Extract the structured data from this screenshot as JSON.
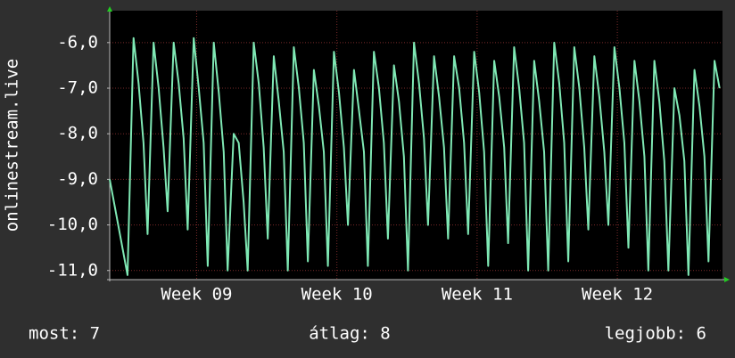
{
  "chart_data": {
    "type": "line",
    "ylabel": "onlinestream.live",
    "xlim": [
      8.38,
      12.75
    ],
    "ylim": [
      -11.2,
      -5.3
    ],
    "xticks": [
      {
        "value": 9,
        "label": "Week 09"
      },
      {
        "value": 10,
        "label": "Week 10"
      },
      {
        "value": 11,
        "label": "Week 11"
      },
      {
        "value": 12,
        "label": "Week 12"
      }
    ],
    "yticks": [
      {
        "value": -6,
        "label": "-6,0"
      },
      {
        "value": -7,
        "label": "-7,0"
      },
      {
        "value": -8,
        "label": "-8,0"
      },
      {
        "value": -9,
        "label": "-9,0"
      },
      {
        "value": -10,
        "label": "-10,0"
      },
      {
        "value": -11,
        "label": "-11,0"
      }
    ],
    "grid": true,
    "series": [
      {
        "color": "#7fe8b4",
        "x": [
          8.38,
          8.507,
          8.55,
          8.586,
          8.621,
          8.65,
          8.693,
          8.729,
          8.764,
          8.793,
          8.836,
          8.872,
          8.907,
          8.936,
          8.979,
          9.015,
          9.05,
          9.079,
          9.122,
          9.158,
          9.193,
          9.221,
          9.264,
          9.3,
          9.335,
          9.364,
          9.407,
          9.443,
          9.478,
          9.507,
          9.55,
          9.586,
          9.621,
          9.65,
          9.693,
          9.729,
          9.764,
          9.793,
          9.836,
          9.872,
          9.907,
          9.936,
          9.979,
          10.015,
          10.05,
          10.079,
          10.122,
          10.158,
          10.193,
          10.221,
          10.264,
          10.3,
          10.335,
          10.364,
          10.407,
          10.443,
          10.478,
          10.507,
          10.55,
          10.586,
          10.621,
          10.65,
          10.693,
          10.729,
          10.764,
          10.793,
          10.836,
          10.872,
          10.907,
          10.936,
          10.979,
          11.015,
          11.05,
          11.079,
          11.122,
          11.158,
          11.193,
          11.221,
          11.264,
          11.3,
          11.335,
          11.364,
          11.407,
          11.443,
          11.478,
          11.507,
          11.55,
          11.586,
          11.621,
          11.65,
          11.693,
          11.729,
          11.764,
          11.793,
          11.836,
          11.872,
          11.907,
          11.936,
          11.979,
          12.015,
          12.05,
          12.079,
          12.122,
          12.158,
          12.193,
          12.221,
          12.264,
          12.3,
          12.335,
          12.364,
          12.407,
          12.443,
          12.478,
          12.507,
          12.55,
          12.586,
          12.621,
          12.65,
          12.693,
          12.729
        ],
        "values": [
          -9.0,
          -11.1,
          -5.9,
          -6.9,
          -8.2,
          -10.2,
          -6.0,
          -7.0,
          -8.3,
          -9.7,
          -6.0,
          -6.9,
          -8.1,
          -10.1,
          -5.9,
          -7.0,
          -8.2,
          -10.9,
          -6.0,
          -7.1,
          -8.4,
          -11.0,
          -8.0,
          -8.2,
          -9.5,
          -11.0,
          -6.0,
          -6.9,
          -8.3,
          -10.3,
          -6.3,
          -7.3,
          -8.4,
          -11.0,
          -6.1,
          -7.0,
          -8.2,
          -10.8,
          -6.6,
          -7.4,
          -8.4,
          -10.9,
          -6.2,
          -7.1,
          -8.3,
          -10.0,
          -6.6,
          -7.5,
          -8.4,
          -10.9,
          -6.2,
          -7.0,
          -8.2,
          -10.3,
          -6.5,
          -7.3,
          -8.5,
          -11.0,
          -6.0,
          -6.9,
          -8.1,
          -10.0,
          -6.3,
          -7.2,
          -8.3,
          -10.3,
          -6.3,
          -7.0,
          -8.2,
          -10.2,
          -6.2,
          -7.1,
          -8.4,
          -10.9,
          -6.4,
          -7.2,
          -8.3,
          -10.4,
          -6.1,
          -7.0,
          -8.2,
          -11.0,
          -6.4,
          -7.3,
          -8.4,
          -11.0,
          -6.0,
          -6.9,
          -8.2,
          -10.8,
          -6.1,
          -7.0,
          -8.3,
          -10.1,
          -6.3,
          -7.2,
          -8.4,
          -10.0,
          -6.1,
          -7.0,
          -8.2,
          -10.5,
          -6.4,
          -7.3,
          -8.5,
          -11.0,
          -6.4,
          -7.3,
          -8.6,
          -11.0,
          -7.0,
          -7.6,
          -8.6,
          -11.1,
          -6.6,
          -7.4,
          -8.5,
          -10.8,
          -6.4,
          -7.0
        ]
      }
    ]
  },
  "footer": {
    "current": "most: 7",
    "average": "átlag: 8",
    "best": "legjobb: 6"
  }
}
